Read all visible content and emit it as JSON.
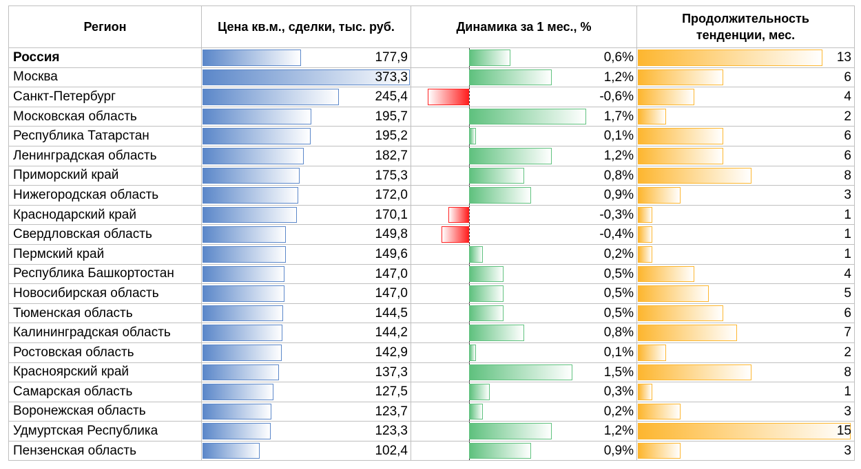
{
  "header": {
    "region": "Регион",
    "price": "Цена кв.м., сделки, тыс. руб.",
    "dynamics": "Динамика за 1 мес., %",
    "duration_line1": "Продолжительность",
    "duration_line2": "тенденции, мес."
  },
  "colors": {
    "price_bar": "#5b87c9",
    "positive_bar": "#5fc17e",
    "negative_bar": "#ff1f1f",
    "duration_bar": "#fdb62f",
    "grid": "#bfbfbf"
  },
  "rows": [
    {
      "region": "Россия",
      "price": "177,9",
      "dynamics": "0,6%",
      "duration": "13",
      "bold": true
    },
    {
      "region": "Москва",
      "price": "373,3",
      "dynamics": "1,2%",
      "duration": "6"
    },
    {
      "region": "Санкт-Петербург",
      "price": "245,4",
      "dynamics": "-0,6%",
      "duration": "4"
    },
    {
      "region": "Московская область",
      "price": "195,7",
      "dynamics": "1,7%",
      "duration": "2"
    },
    {
      "region": "Республика Татарстан",
      "price": "195,2",
      "dynamics": "0,1%",
      "duration": "6"
    },
    {
      "region": "Ленинградская область",
      "price": "182,7",
      "dynamics": "1,2%",
      "duration": "6"
    },
    {
      "region": "Приморский край",
      "price": "175,3",
      "dynamics": "0,8%",
      "duration": "8"
    },
    {
      "region": "Нижегородская область",
      "price": "172,0",
      "dynamics": "0,9%",
      "duration": "3"
    },
    {
      "region": "Краснодарский край",
      "price": "170,1",
      "dynamics": "-0,3%",
      "duration": "1"
    },
    {
      "region": "Свердловская область",
      "price": "149,8",
      "dynamics": "-0,4%",
      "duration": "1"
    },
    {
      "region": "Пермский край",
      "price": "149,6",
      "dynamics": "0,2%",
      "duration": "1"
    },
    {
      "region": "Республика Башкортостан",
      "price": "147,0",
      "dynamics": "0,5%",
      "duration": "4"
    },
    {
      "region": "Новосибирская область",
      "price": "147,0",
      "dynamics": "0,5%",
      "duration": "5"
    },
    {
      "region": "Тюменская область",
      "price": "144,5",
      "dynamics": "0,5%",
      "duration": "6"
    },
    {
      "region": "Калининградская область",
      "price": "144,2",
      "dynamics": "0,8%",
      "duration": "7"
    },
    {
      "region": "Ростовская область",
      "price": "142,9",
      "dynamics": "0,1%",
      "duration": "2"
    },
    {
      "region": "Красноярский край",
      "price": "137,3",
      "dynamics": "1,5%",
      "duration": "8"
    },
    {
      "region": "Самарская область",
      "price": "127,5",
      "dynamics": "0,3%",
      "duration": "1"
    },
    {
      "region": "Воронежская область",
      "price": "123,7",
      "dynamics": "0,2%",
      "duration": "3"
    },
    {
      "region": "Удмуртская Республика",
      "price": "123,3",
      "dynamics": "1,2%",
      "duration": "15"
    },
    {
      "region": "Пензенская область",
      "price": "102,4",
      "dynamics": "0,9%",
      "duration": "3"
    }
  ]
}
